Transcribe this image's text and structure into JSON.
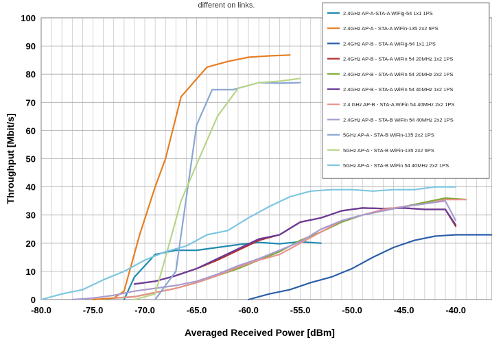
{
  "chart_data": {
    "type": "line",
    "title": "",
    "top_note": "different on links.",
    "xlabel": "Averaged Received Power [dBm]",
    "ylabel": "Throughput [Mbit/s]",
    "xlim": [
      -80,
      -36.5
    ],
    "ylim": [
      0,
      100
    ],
    "x_ticks": [
      -80,
      -75,
      -70,
      -65,
      -60,
      -55,
      -50,
      -45,
      -40
    ],
    "x_tick_labels": [
      "-80.0",
      "-75.0",
      "-70.0",
      "-65.0",
      "-60.0",
      "-55.0",
      "-50.0",
      "-45.0",
      "-40.0"
    ],
    "y_ticks": [
      0,
      10,
      20,
      30,
      40,
      50,
      60,
      70,
      80,
      90,
      100
    ],
    "y_tick_labels": [
      "0",
      "10",
      "20",
      "30",
      "40",
      "50",
      "60",
      "70",
      "80",
      "90",
      "100"
    ],
    "grid": true,
    "legend_position": "top-right",
    "series": [
      {
        "name": "2.4GHz AP-A-STA-A WiFig-54 1x1 1PS",
        "color": "#1f8bb0",
        "points": [
          [
            -72,
            0
          ],
          [
            -71,
            8
          ],
          [
            -70,
            12
          ],
          [
            -69,
            16
          ],
          [
            -67,
            17.5
          ],
          [
            -65,
            17.5
          ],
          [
            -63,
            18.5
          ],
          [
            -61,
            19.5
          ],
          [
            -59,
            20.3
          ],
          [
            -57,
            19.8
          ],
          [
            -55,
            20.5
          ],
          [
            -53,
            20
          ]
        ]
      },
      {
        "name": "2.4GHz AP-A - STA-A WiFin-135 2x2 6PS",
        "color": "#e67e22",
        "points": [
          [
            -75,
            0
          ],
          [
            -73,
            0.5
          ],
          [
            -72,
            3
          ],
          [
            -70.5,
            23
          ],
          [
            -69,
            40
          ],
          [
            -68,
            50
          ],
          [
            -66.5,
            72
          ],
          [
            -64,
            82.5
          ],
          [
            -62,
            84.5
          ],
          [
            -60,
            86
          ],
          [
            -58,
            86.5
          ],
          [
            -56,
            86.8
          ]
        ]
      },
      {
        "name": "2.4GHz AP-B - STA-A WiFig-54 1x1 1PS",
        "color": "#2a5ea8",
        "points": [
          [
            -60,
            0
          ],
          [
            -58,
            2
          ],
          [
            -56,
            3.5
          ],
          [
            -54,
            6
          ],
          [
            -52,
            8
          ],
          [
            -50,
            11
          ],
          [
            -48,
            15
          ],
          [
            -46,
            18.5
          ],
          [
            -44,
            21
          ],
          [
            -42,
            22.5
          ],
          [
            -40,
            23
          ],
          [
            -36.5,
            23
          ]
        ]
      },
      {
        "name": "2.4GHz AP-B - STA-A WiFin 54 20MHz 1x2 1PS",
        "color": "#b03030",
        "points": [
          [
            -71,
            5.5
          ],
          [
            -69,
            6.5
          ],
          [
            -67,
            8.5
          ],
          [
            -65,
            11
          ],
          [
            -63,
            14
          ],
          [
            -61,
            17.5
          ],
          [
            -59,
            21
          ],
          [
            -57,
            23
          ],
          [
            -55,
            27.5
          ],
          [
            -53,
            29
          ],
          [
            -51,
            31.5
          ],
          [
            -49,
            32.5
          ],
          [
            -47,
            32.3
          ],
          [
            -45,
            32.5
          ],
          [
            -43,
            32
          ],
          [
            -41,
            32
          ],
          [
            -40,
            26
          ]
        ]
      },
      {
        "name": "2.4GHz AP-B - STA-A WiFin 54 20MHz 2x2 1PS",
        "color": "#7bab35",
        "points": [
          [
            -73,
            0.5
          ],
          [
            -71,
            1
          ],
          [
            -69,
            2.5
          ],
          [
            -67,
            4
          ],
          [
            -65,
            6
          ],
          [
            -63,
            8.5
          ],
          [
            -61,
            11
          ],
          [
            -59,
            14
          ],
          [
            -57,
            17
          ],
          [
            -55,
            21
          ],
          [
            -53,
            24
          ],
          [
            -51,
            27.5
          ],
          [
            -49,
            30
          ],
          [
            -47,
            31.5
          ],
          [
            -45,
            33
          ],
          [
            -43,
            34.5
          ],
          [
            -41,
            36
          ],
          [
            -39,
            35.5
          ]
        ]
      },
      {
        "name": "2.4GHz AP-B - STA-A WiFin 54 40MHz 1x2 1PS",
        "color": "#6a3d9a",
        "points": [
          [
            -71,
            5.5
          ],
          [
            -69,
            6.5
          ],
          [
            -67,
            8.5
          ],
          [
            -65,
            11
          ],
          [
            -63,
            14.5
          ],
          [
            -61,
            18
          ],
          [
            -59,
            21.5
          ],
          [
            -57,
            23
          ],
          [
            -55,
            27.5
          ],
          [
            -53,
            29
          ],
          [
            -51,
            31.5
          ],
          [
            -49,
            32.5
          ],
          [
            -47,
            32.3
          ],
          [
            -45,
            32.5
          ],
          [
            -43,
            32
          ],
          [
            -41,
            32
          ],
          [
            -40,
            26.5
          ]
        ]
      },
      {
        "name": "2.4 GHz AP-B - STA-A WiFin 54 40MHz 2x2 1PS",
        "color": "#e8938a",
        "points": [
          [
            -73,
            0.5
          ],
          [
            -71,
            1
          ],
          [
            -69,
            2.5
          ],
          [
            -67,
            4
          ],
          [
            -65,
            6
          ],
          [
            -63,
            8.5
          ],
          [
            -61,
            11.5
          ],
          [
            -59,
            14
          ],
          [
            -57,
            16
          ],
          [
            -55,
            20
          ],
          [
            -53,
            24
          ],
          [
            -51,
            28
          ],
          [
            -49,
            30
          ],
          [
            -47,
            32
          ],
          [
            -45,
            33
          ],
          [
            -43,
            34
          ],
          [
            -41,
            35.5
          ],
          [
            -39,
            35.5
          ]
        ]
      },
      {
        "name": "2.4GHz AP-B - STA-B WiFin 54 40MHz 2x2 1PS",
        "color": "#a99bcf",
        "points": [
          [
            -77,
            0
          ],
          [
            -75,
            0.5
          ],
          [
            -73,
            1.5
          ],
          [
            -71,
            3
          ],
          [
            -69,
            4
          ],
          [
            -67,
            5
          ],
          [
            -65,
            6.5
          ],
          [
            -63,
            9
          ],
          [
            -61,
            12
          ],
          [
            -59,
            14.5
          ],
          [
            -57,
            17.5
          ],
          [
            -55,
            20.5
          ],
          [
            -53,
            25
          ],
          [
            -51,
            28
          ],
          [
            -49,
            30
          ],
          [
            -47,
            31.5
          ],
          [
            -45,
            33
          ],
          [
            -43,
            34
          ],
          [
            -41,
            35
          ],
          [
            -40,
            28
          ]
        ]
      },
      {
        "name": "5GHz AP-A - STA-B WiFin-135 2x2 1PS",
        "color": "#8aa6d3",
        "points": [
          [
            -69,
            0
          ],
          [
            -68,
            5
          ],
          [
            -67,
            10
          ],
          [
            -65,
            62
          ],
          [
            -63.5,
            74.5
          ],
          [
            -61.5,
            74.5
          ],
          [
            -59,
            77
          ],
          [
            -57,
            76.8
          ],
          [
            -55,
            77
          ]
        ]
      },
      {
        "name": "5GHz AP-A - STA-B WiFin-135 2x2 6PS",
        "color": "#b8d48a",
        "points": [
          [
            -71,
            0
          ],
          [
            -69,
            2
          ],
          [
            -68,
            15
          ],
          [
            -66.5,
            35
          ],
          [
            -65,
            48
          ],
          [
            -63,
            65
          ],
          [
            -61,
            75
          ],
          [
            -59,
            77
          ],
          [
            -57,
            77.5
          ],
          [
            -55,
            78.5
          ]
        ]
      },
      {
        "name": "5GHz AP-A - STA-B WiFin 54 40MHz 2x2 1PS",
        "color": "#7ec6e0",
        "points": [
          [
            -80,
            0
          ],
          [
            -78,
            2
          ],
          [
            -76,
            3.5
          ],
          [
            -74,
            7
          ],
          [
            -72,
            10
          ],
          [
            -70,
            14
          ],
          [
            -68,
            17
          ],
          [
            -66,
            19
          ],
          [
            -64,
            23
          ],
          [
            -62,
            24.5
          ],
          [
            -60,
            29
          ],
          [
            -58,
            33
          ],
          [
            -56,
            36.5
          ],
          [
            -54,
            38.5
          ],
          [
            -52,
            39
          ],
          [
            -50,
            39
          ],
          [
            -48,
            38.5
          ],
          [
            -46,
            39
          ],
          [
            -44,
            39
          ],
          [
            -42,
            40
          ],
          [
            -40,
            40
          ]
        ]
      }
    ]
  }
}
